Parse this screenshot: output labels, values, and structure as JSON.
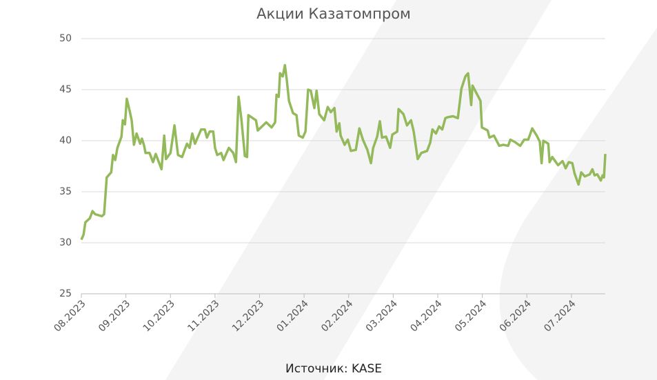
{
  "chart_data": {
    "type": "line",
    "title": "Акции Казатомпром",
    "source": "Источник: KASE",
    "x": [
      0,
      0.05,
      0.09,
      0.19,
      0.25,
      0.31,
      0.46,
      0.51,
      0.57,
      0.67,
      0.71,
      0.76,
      0.81,
      0.9,
      0.93,
      0.98,
      1.02,
      1.08,
      1.13,
      1.18,
      1.24,
      1.32,
      1.36,
      1.41,
      1.44,
      1.53,
      1.61,
      1.67,
      1.8,
      1.86,
      1.9,
      2.0,
      2.09,
      2.17,
      2.26,
      2.37,
      2.43,
      2.49,
      2.55,
      2.69,
      2.77,
      2.82,
      2.88,
      2.96,
      3.0,
      3.05,
      3.14,
      3.19,
      3.31,
      3.41,
      3.47,
      3.53,
      3.59,
      3.67,
      3.72,
      3.75,
      3.92,
      3.96,
      4.15,
      4.27,
      4.35,
      4.38,
      4.43,
      4.46,
      4.52,
      4.57,
      4.61,
      4.66,
      4.75,
      4.83,
      4.88,
      4.97,
      5.03,
      5.09,
      5.15,
      5.23,
      5.28,
      5.34,
      5.45,
      5.53,
      5.6,
      5.68,
      5.73,
      5.79,
      5.82,
      5.91,
      5.98,
      6.05,
      6.16,
      6.24,
      6.32,
      6.42,
      6.5,
      6.55,
      6.64,
      6.7,
      6.75,
      6.84,
      6.93,
      6.98,
      7.09,
      7.12,
      7.23,
      7.31,
      7.4,
      7.46,
      7.55,
      7.63,
      7.76,
      7.83,
      7.88,
      7.96,
      8.03,
      8.1,
      8.17,
      8.22,
      8.34,
      8.45,
      8.53,
      8.62,
      8.68,
      8.75,
      8.78,
      8.96,
      8.99,
      9.12,
      9.16,
      9.26,
      9.38,
      9.47,
      9.58,
      9.63,
      9.72,
      9.85,
      9.94,
      10.03,
      10.12,
      10.22,
      10.29,
      10.33,
      10.37,
      10.48,
      10.51,
      10.57,
      10.7,
      10.8,
      10.87,
      10.94,
      11.02,
      11.07,
      11.16,
      11.22,
      11.3,
      11.41,
      11.47,
      11.52,
      11.58,
      11.66,
      11.7,
      11.73,
      11.76
    ],
    "series": [
      {
        "name": "Казатомпром",
        "color": "#93b95a",
        "values": [
          30.3,
          30.8,
          32.0,
          32.4,
          33.1,
          32.8,
          32.6,
          32.8,
          36.4,
          36.9,
          38.6,
          38.1,
          39.3,
          40.4,
          42.0,
          41.6,
          44.1,
          43.0,
          42.0,
          39.6,
          40.7,
          39.7,
          40.2,
          39.5,
          38.8,
          38.8,
          37.9,
          38.7,
          37.2,
          40.5,
          38.2,
          38.8,
          41.5,
          38.6,
          38.4,
          39.7,
          39.3,
          40.7,
          39.7,
          41.1,
          41.1,
          40.3,
          40.9,
          40.9,
          39.3,
          38.6,
          38.8,
          38.1,
          39.3,
          38.8,
          37.9,
          44.3,
          42.2,
          38.5,
          38.4,
          42.5,
          42.0,
          41.0,
          41.8,
          41.3,
          41.8,
          44.5,
          44.3,
          46.6,
          46.3,
          47.4,
          46.0,
          43.9,
          42.7,
          42.5,
          40.5,
          40.3,
          40.9,
          45.0,
          44.9,
          43.2,
          44.9,
          42.6,
          42.0,
          43.3,
          42.8,
          43.2,
          40.9,
          41.7,
          40.5,
          39.6,
          40.1,
          39.0,
          39.1,
          41.2,
          40.1,
          39.1,
          37.8,
          39.3,
          40.4,
          41.9,
          40.3,
          40.4,
          39.3,
          40.6,
          40.9,
          43.1,
          42.6,
          41.5,
          42.0,
          40.9,
          38.2,
          38.8,
          39.0,
          39.8,
          41.1,
          40.7,
          41.4,
          41.1,
          42.2,
          42.3,
          42.4,
          42.2,
          45.1,
          46.3,
          46.6,
          43.5,
          45.4,
          43.9,
          41.3,
          41.0,
          40.3,
          40.5,
          39.5,
          39.6,
          39.5,
          40.1,
          39.9,
          39.5,
          40.1,
          40.1,
          41.2,
          40.5,
          39.9,
          37.8,
          40.0,
          39.7,
          37.9,
          38.4,
          37.6,
          38.0,
          37.3,
          37.9,
          37.8,
          36.8,
          35.7,
          36.9,
          36.5,
          36.7,
          37.2,
          36.6,
          36.7,
          36.1,
          36.6,
          36.4,
          38.7
        ]
      }
    ],
    "xlim": [
      0,
      11.76
    ],
    "xticks": [
      {
        "value": 0,
        "label": "08.2023"
      },
      {
        "value": 1,
        "label": "09.2023"
      },
      {
        "value": 2,
        "label": "10.2023"
      },
      {
        "value": 3,
        "label": "11.2023"
      },
      {
        "value": 4,
        "label": "12.2023"
      },
      {
        "value": 5,
        "label": "01.2024"
      },
      {
        "value": 6,
        "label": "02.2024"
      },
      {
        "value": 7,
        "label": "03.2024"
      },
      {
        "value": 8,
        "label": "04.2024"
      },
      {
        "value": 9,
        "label": "05.2024"
      },
      {
        "value": 10,
        "label": "06.2024"
      },
      {
        "value": 11,
        "label": "07.2024"
      }
    ],
    "ylim": [
      25,
      50
    ],
    "yticks": [
      25,
      30,
      35,
      40,
      45,
      50
    ],
    "grid": true
  }
}
